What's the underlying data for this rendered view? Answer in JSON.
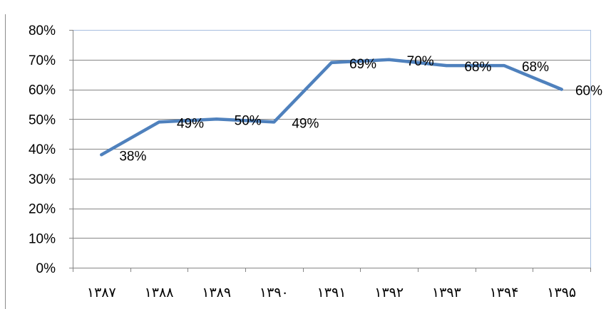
{
  "chart_data": {
    "type": "line",
    "categories": [
      "۱۳۸۷",
      "۱۳۸۸",
      "۱۳۸۹",
      "۱۳۹۰",
      "۱۳۹۱",
      "۱۳۹۲",
      "۱۳۹۳",
      "۱۳۹۴",
      "۱۳۹۵"
    ],
    "series": [
      {
        "values": [
          38,
          49,
          50,
          49,
          69,
          70,
          68,
          68,
          60
        ]
      }
    ],
    "data_labels": [
      "38%",
      "49%",
      "50%",
      "49%",
      "69%",
      "70%",
      "68%",
      "68%",
      "60%"
    ],
    "ytick_values": [
      0,
      10,
      20,
      30,
      40,
      50,
      60,
      70,
      80
    ],
    "ytick_labels": [
      "0%",
      "10%",
      "20%",
      "30%",
      "40%",
      "50%",
      "60%",
      "70%",
      "80%"
    ],
    "ylim": [
      0,
      80
    ],
    "grid": true,
    "legend": "none",
    "colors": {
      "line": "#4f81bd",
      "grid": "#868686",
      "plot_border": "#a7bedf",
      "frame": "#8c8c8c"
    }
  }
}
